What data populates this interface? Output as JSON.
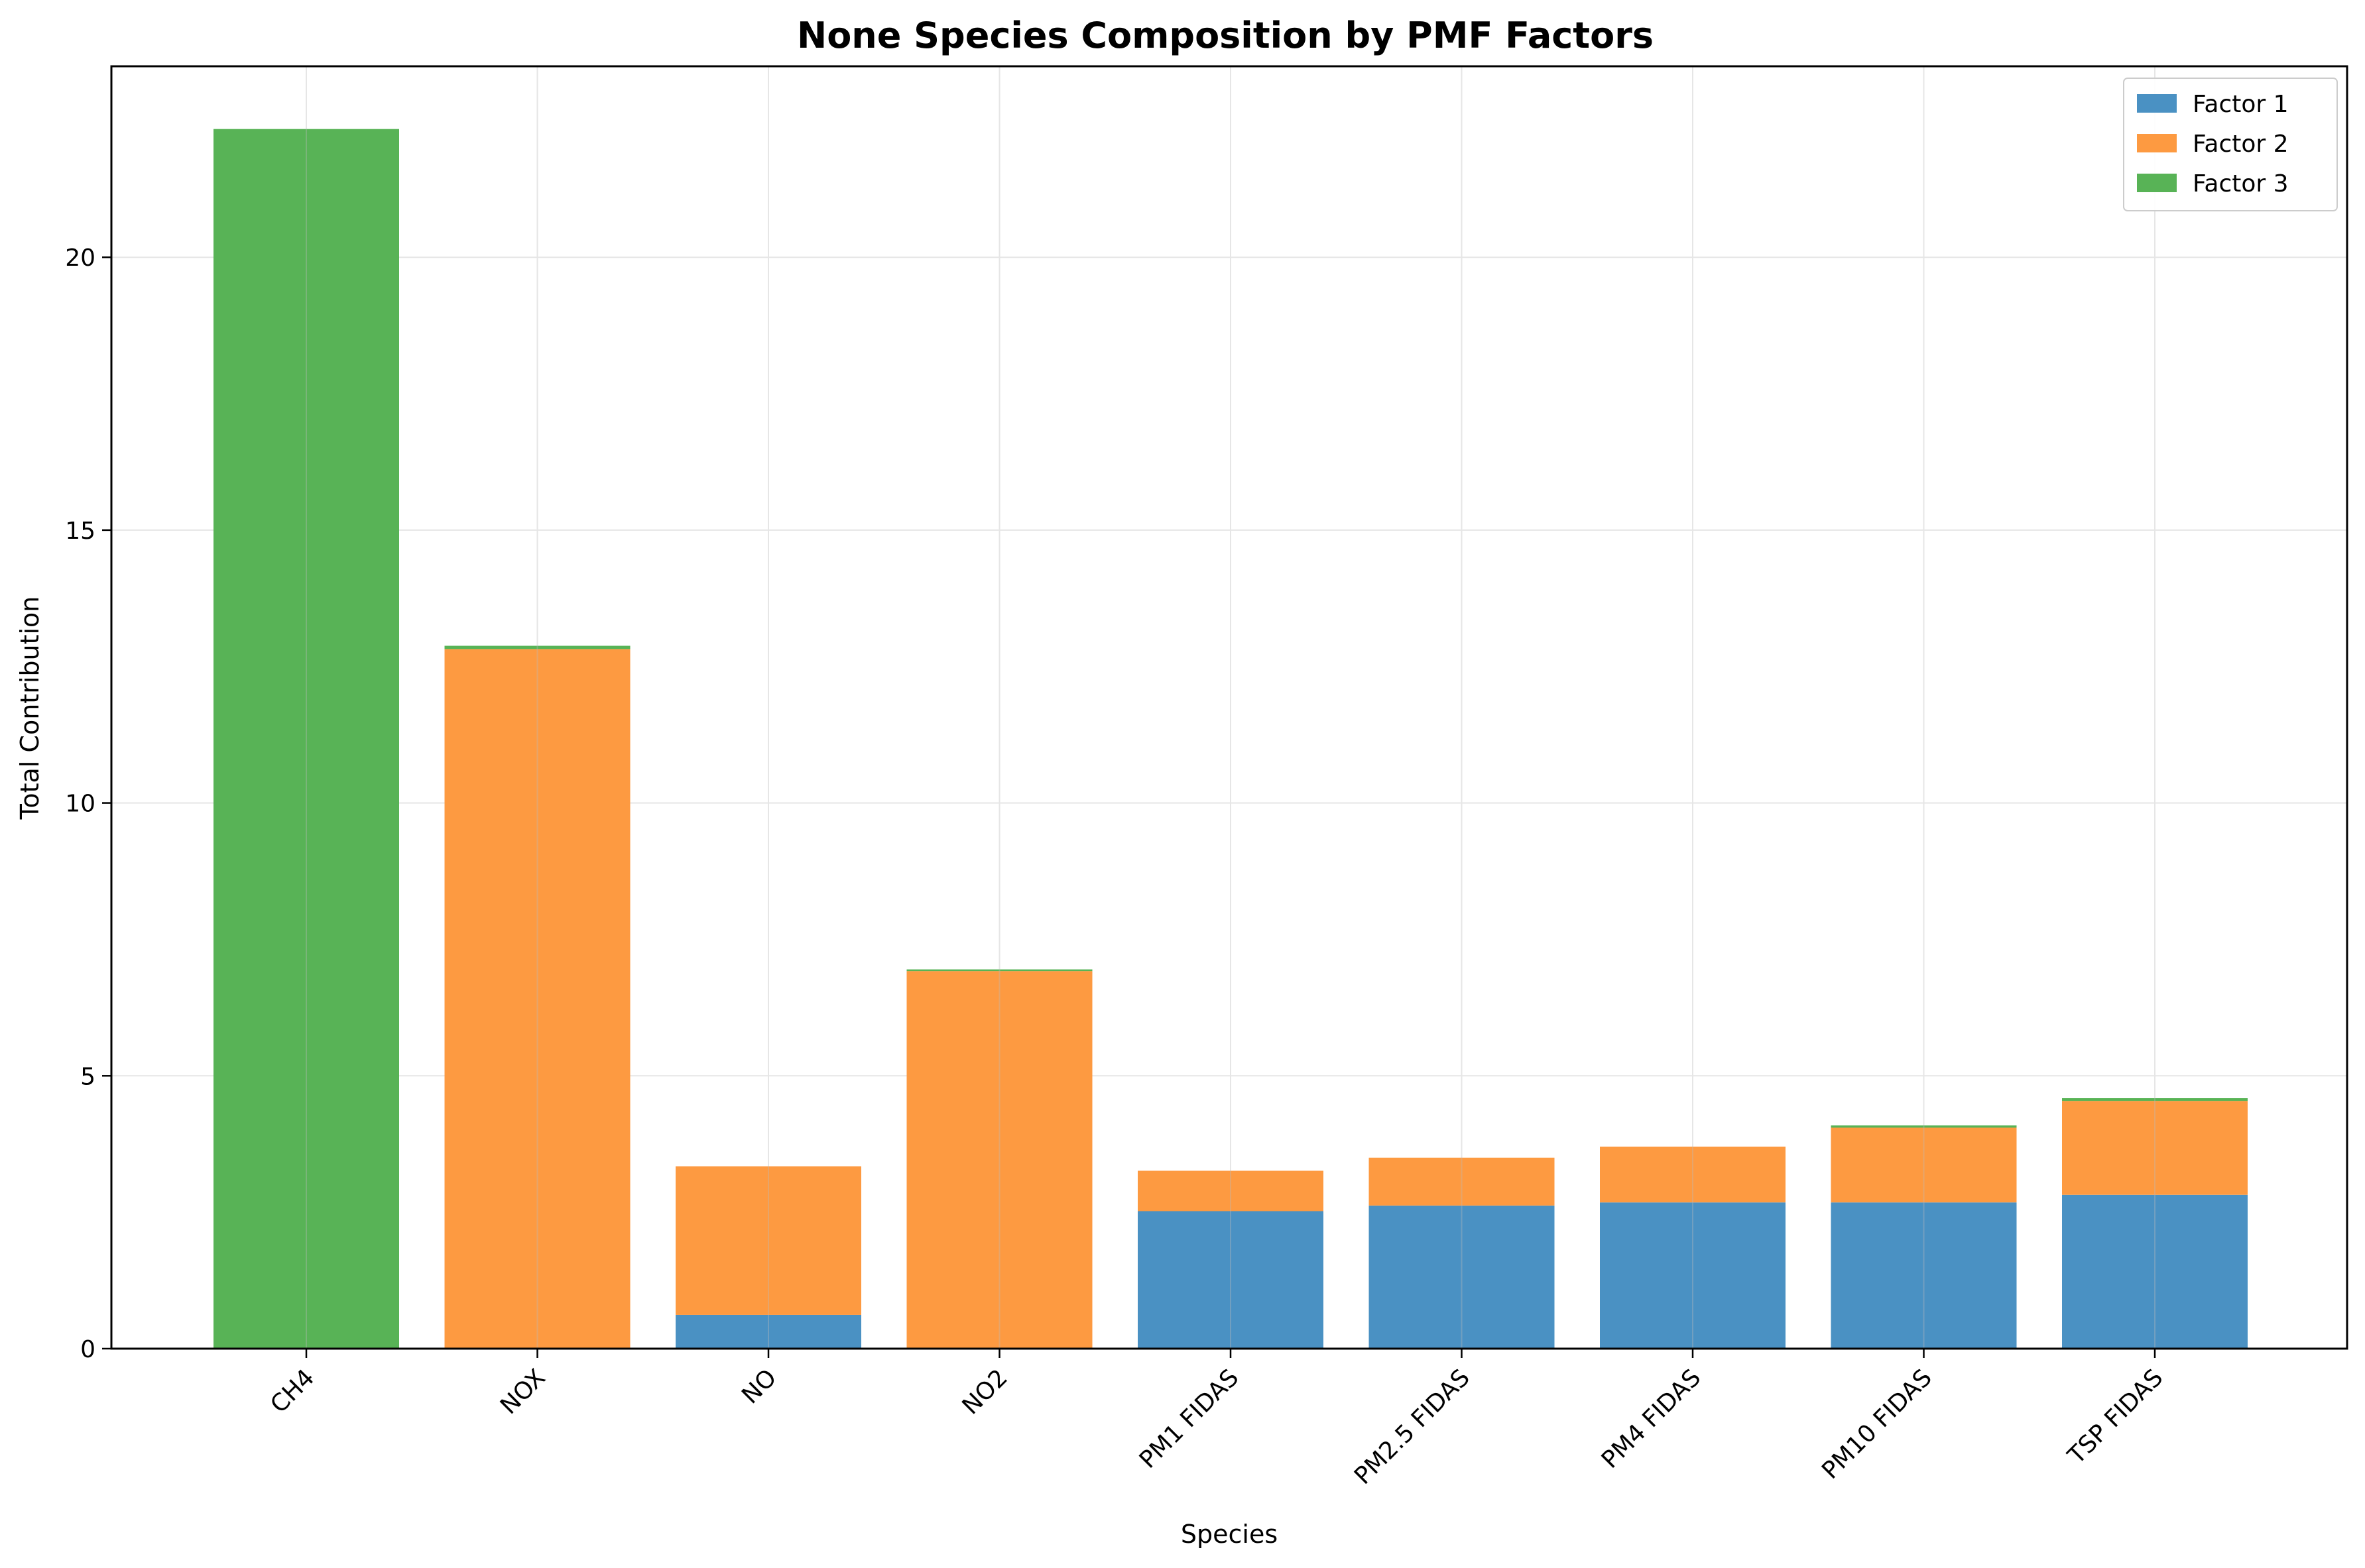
{
  "chart_data": {
    "type": "bar",
    "stacked": true,
    "title": "None Species Composition by PMF Factors",
    "xlabel": "Species",
    "ylabel": "Total Contribution",
    "ylim": [
      0,
      23.5
    ],
    "yticks": [
      0,
      5,
      10,
      15,
      20
    ],
    "grid": true,
    "legend_position": "top-right",
    "categories": [
      "CH4",
      "NOX",
      "NO",
      "NO2",
      "PM1 FIDAS",
      "PM2.5 FIDAS",
      "PM4 FIDAS",
      "PM10 FIDAS",
      "TSP FIDAS"
    ],
    "series": [
      {
        "name": "Factor 1",
        "color": "#4a91c3",
        "values": [
          0.0,
          0.0,
          0.62,
          0.0,
          2.52,
          2.62,
          2.68,
          2.68,
          2.82
        ]
      },
      {
        "name": "Factor 2",
        "color": "#fd9a41",
        "values": [
          0.0,
          12.82,
          2.72,
          6.92,
          0.74,
          0.88,
          1.02,
          1.37,
          1.72
        ]
      },
      {
        "name": "Factor 3",
        "color": "#58b356",
        "values": [
          22.35,
          0.06,
          0.0,
          0.03,
          0.0,
          0.0,
          0.0,
          0.04,
          0.05
        ]
      }
    ]
  }
}
